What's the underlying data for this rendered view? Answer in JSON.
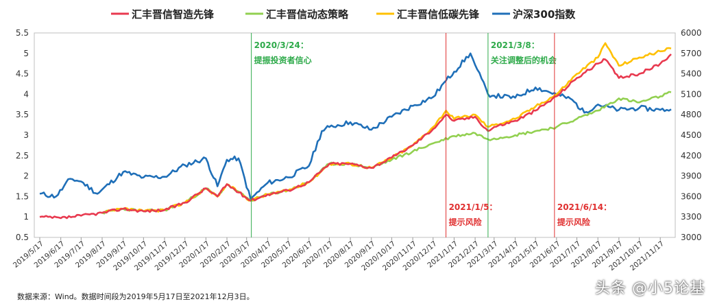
{
  "chart_data": {
    "type": "line",
    "legend": [
      {
        "name": "汇丰晋信智造先锋",
        "color": "#e8394f"
      },
      {
        "name": "汇丰晋信动态策略",
        "color": "#92d050"
      },
      {
        "name": "汇丰晋信低碳先锋",
        "color": "#ffc000"
      },
      {
        "name": "沪深300指数",
        "color": "#1f6fb8"
      }
    ],
    "legend_position": "top",
    "x_ticks": [
      "2019/5/17",
      "2019/6/17",
      "2019/7/17",
      "2019/8/17",
      "2019/9/17",
      "2019/10/17",
      "2019/11/17",
      "2019/12/17",
      "2020/1/17",
      "2020/2/17",
      "2020/3/17",
      "2020/4/17",
      "2020/5/17",
      "2020/6/17",
      "2020/7/17",
      "2020/8/17",
      "2020/9/17",
      "2020/10/17",
      "2020/11/17",
      "2020/12/17",
      "2021/1/17",
      "2021/2/17",
      "2021/3/17",
      "2021/4/17",
      "2021/5/17",
      "2021/6/17",
      "2021/7/17",
      "2021/8/17",
      "2021/9/17",
      "2021/10/17",
      "2021/11/17"
    ],
    "y_left": {
      "ticks": [
        "0.5",
        "1",
        "1.5",
        "2",
        "2.5",
        "3",
        "3.5",
        "4",
        "4.5",
        "5",
        "5.5"
      ],
      "range": [
        0.5,
        5.5
      ]
    },
    "y_right": {
      "ticks": [
        "3000",
        "3300",
        "3600",
        "3900",
        "4200",
        "4500",
        "4800",
        "5100",
        "5400",
        "5700",
        "6000"
      ],
      "range": [
        3000,
        6000
      ]
    },
    "grid": false,
    "series": [
      {
        "name": "沪深300指数",
        "axis": "right",
        "color": "#1f6fb8",
        "points": [
          [
            "2019/5/17",
            3640
          ],
          [
            "2019/6/10",
            3600
          ],
          [
            "2019/7/1",
            3860
          ],
          [
            "2019/7/17",
            3820
          ],
          [
            "2019/8/10",
            3640
          ],
          [
            "2019/9/17",
            3960
          ],
          [
            "2019/10/17",
            3880
          ],
          [
            "2019/11/17",
            3890
          ],
          [
            "2019/12/17",
            4060
          ],
          [
            "2020/1/17",
            4160
          ],
          [
            "2020/2/3",
            3750
          ],
          [
            "2020/2/17",
            4140
          ],
          [
            "2020/3/5",
            4160
          ],
          [
            "2020/3/23",
            3560
          ],
          [
            "2020/4/17",
            3800
          ],
          [
            "2020/5/17",
            3880
          ],
          [
            "2020/6/17",
            4050
          ],
          [
            "2020/7/6",
            4560
          ],
          [
            "2020/7/17",
            4620
          ],
          [
            "2020/8/17",
            4690
          ],
          [
            "2020/9/17",
            4580
          ],
          [
            "2020/10/17",
            4770
          ],
          [
            "2020/11/17",
            4930
          ],
          [
            "2020/12/17",
            5060
          ],
          [
            "2021/1/5",
            5300
          ],
          [
            "2021/1/17",
            5430
          ],
          [
            "2021/2/10",
            5700
          ],
          [
            "2021/2/17",
            5530
          ],
          [
            "2021/3/8",
            5100
          ],
          [
            "2021/3/17",
            5080
          ],
          [
            "2021/4/17",
            5050
          ],
          [
            "2021/5/17",
            5200
          ],
          [
            "2021/6/17",
            5100
          ],
          [
            "2021/7/10",
            5020
          ],
          [
            "2021/7/28",
            4830
          ],
          [
            "2021/8/17",
            4950
          ],
          [
            "2021/9/17",
            4870
          ],
          [
            "2021/10/17",
            4900
          ],
          [
            "2021/11/17",
            4870
          ],
          [
            "2021/12/3",
            4880
          ]
        ]
      },
      {
        "name": "汇丰晋信动态策略",
        "axis": "left",
        "color": "#92d050",
        "points": [
          [
            "2019/8/17",
            1.1
          ],
          [
            "2019/9/17",
            1.2
          ],
          [
            "2019/10/17",
            1.14
          ],
          [
            "2019/11/17",
            1.17
          ],
          [
            "2019/12/17",
            1.35
          ],
          [
            "2020/1/17",
            1.7
          ],
          [
            "2020/2/3",
            1.5
          ],
          [
            "2020/2/17",
            1.8
          ],
          [
            "2020/3/23",
            1.4
          ],
          [
            "2020/4/17",
            1.55
          ],
          [
            "2020/5/17",
            1.65
          ],
          [
            "2020/6/17",
            1.85
          ],
          [
            "2020/7/17",
            2.3
          ],
          [
            "2020/8/17",
            2.3
          ],
          [
            "2020/9/17",
            2.2
          ],
          [
            "2020/10/17",
            2.4
          ],
          [
            "2020/11/17",
            2.6
          ],
          [
            "2020/12/17",
            2.8
          ],
          [
            "2021/1/17",
            2.98
          ],
          [
            "2021/2/17",
            3.05
          ],
          [
            "2021/3/8",
            2.9
          ],
          [
            "2021/3/17",
            2.92
          ],
          [
            "2021/4/17",
            3.0
          ],
          [
            "2021/5/17",
            3.1
          ],
          [
            "2021/6/17",
            3.2
          ],
          [
            "2021/7/17",
            3.4
          ],
          [
            "2021/8/17",
            3.6
          ],
          [
            "2021/9/17",
            3.9
          ],
          [
            "2021/10/17",
            3.8
          ],
          [
            "2021/11/17",
            3.95
          ],
          [
            "2021/12/3",
            4.05
          ]
        ]
      },
      {
        "name": "汇丰晋信低碳先锋",
        "axis": "left",
        "color": "#ffc000",
        "points": [
          [
            "2019/8/17",
            1.1
          ],
          [
            "2019/9/17",
            1.2
          ],
          [
            "2019/10/17",
            1.14
          ],
          [
            "2019/11/17",
            1.17
          ],
          [
            "2019/12/17",
            1.35
          ],
          [
            "2020/1/17",
            1.7
          ],
          [
            "2020/2/3",
            1.5
          ],
          [
            "2020/2/17",
            1.8
          ],
          [
            "2020/3/23",
            1.4
          ],
          [
            "2020/4/17",
            1.55
          ],
          [
            "2020/5/17",
            1.65
          ],
          [
            "2020/6/17",
            1.85
          ],
          [
            "2020/7/17",
            2.3
          ],
          [
            "2020/8/17",
            2.3
          ],
          [
            "2020/9/17",
            2.2
          ],
          [
            "2020/10/17",
            2.45
          ],
          [
            "2020/11/17",
            2.75
          ],
          [
            "2020/12/17",
            3.2
          ],
          [
            "2021/1/5",
            3.6
          ],
          [
            "2021/1/17",
            3.4
          ],
          [
            "2021/2/17",
            3.5
          ],
          [
            "2021/3/8",
            3.2
          ],
          [
            "2021/3/17",
            3.25
          ],
          [
            "2021/4/17",
            3.4
          ],
          [
            "2021/5/17",
            3.7
          ],
          [
            "2021/6/17",
            4.0
          ],
          [
            "2021/7/17",
            4.5
          ],
          [
            "2021/8/17",
            4.9
          ],
          [
            "2021/8/28",
            5.25
          ],
          [
            "2021/9/17",
            4.7
          ],
          [
            "2021/10/17",
            4.9
          ],
          [
            "2021/11/17",
            5.05
          ],
          [
            "2021/12/3",
            5.12
          ]
        ]
      },
      {
        "name": "汇丰晋信智造先锋",
        "axis": "left",
        "color": "#e8394f",
        "points": [
          [
            "2019/5/17",
            1.0
          ],
          [
            "2019/6/17",
            0.97
          ],
          [
            "2019/7/17",
            1.03
          ],
          [
            "2019/8/17",
            1.1
          ],
          [
            "2019/9/17",
            1.2
          ],
          [
            "2019/10/17",
            1.14
          ],
          [
            "2019/11/17",
            1.17
          ],
          [
            "2019/12/17",
            1.35
          ],
          [
            "2020/1/17",
            1.7
          ],
          [
            "2020/2/3",
            1.5
          ],
          [
            "2020/2/17",
            1.8
          ],
          [
            "2020/3/23",
            1.4
          ],
          [
            "2020/4/17",
            1.55
          ],
          [
            "2020/5/17",
            1.65
          ],
          [
            "2020/6/17",
            1.85
          ],
          [
            "2020/7/17",
            2.3
          ],
          [
            "2020/8/17",
            2.3
          ],
          [
            "2020/9/17",
            2.2
          ],
          [
            "2020/10/17",
            2.45
          ],
          [
            "2020/11/17",
            2.75
          ],
          [
            "2020/12/17",
            3.15
          ],
          [
            "2021/1/5",
            3.5
          ],
          [
            "2021/1/17",
            3.35
          ],
          [
            "2021/2/17",
            3.45
          ],
          [
            "2021/3/8",
            3.1
          ],
          [
            "2021/3/17",
            3.2
          ],
          [
            "2021/4/17",
            3.35
          ],
          [
            "2021/5/17",
            3.6
          ],
          [
            "2021/6/17",
            3.95
          ],
          [
            "2021/7/17",
            4.4
          ],
          [
            "2021/8/17",
            4.75
          ],
          [
            "2021/8/28",
            4.85
          ],
          [
            "2021/9/17",
            4.4
          ],
          [
            "2021/10/17",
            4.5
          ],
          [
            "2021/11/17",
            4.75
          ],
          [
            "2021/12/3",
            4.98
          ]
        ]
      }
    ],
    "annotations": [
      {
        "date": "2020/3/24",
        "line_color": "#2eaa4a",
        "text_color": "#2eaa4a",
        "label": "2020/3/24：",
        "sub": "提振投资者信心",
        "position": "top"
      },
      {
        "date": "2021/3/8",
        "line_color": "#2eaa4a",
        "text_color": "#2eaa4a",
        "label": "2021/3/8：",
        "sub": "关注调整后的机会",
        "position": "top"
      },
      {
        "date": "2021/1/5",
        "line_color": "#e03030",
        "text_color": "#e03030",
        "label": "2021/1/5：",
        "sub": "提示风险",
        "position": "bottom"
      },
      {
        "date": "2021/6/14",
        "line_color": "#e03030",
        "text_color": "#e03030",
        "label": "2021/6/14：",
        "sub": "提示风险",
        "position": "bottom"
      }
    ]
  },
  "footer": {
    "source": "数据来源：Wind。数据时间段为2019年5月17日至2021年12月3日。",
    "watermark": "头条 @小5论基"
  }
}
